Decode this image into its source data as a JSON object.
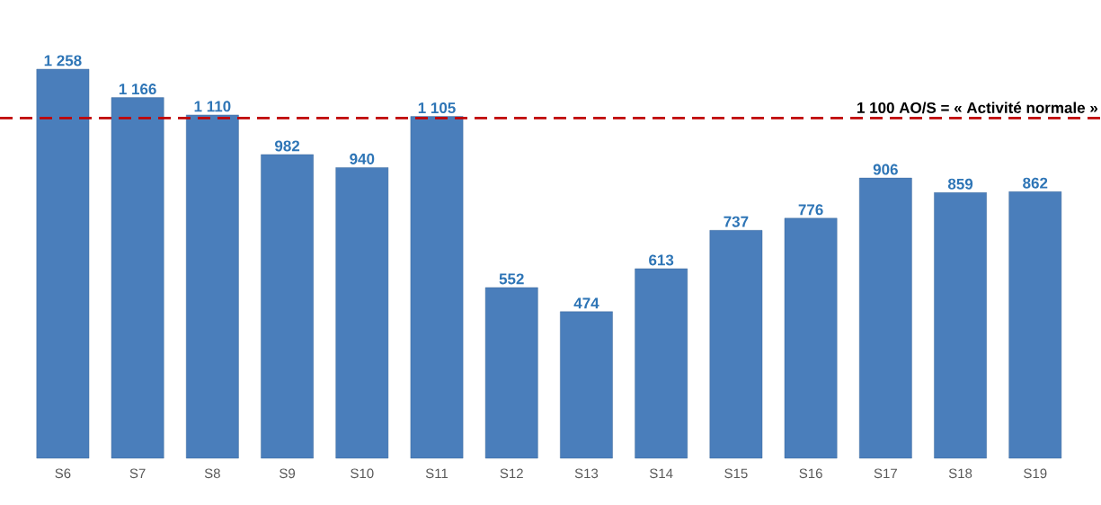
{
  "chart_data": {
    "type": "bar",
    "categories": [
      "S6",
      "S7",
      "S8",
      "S9",
      "S10",
      "S11",
      "S12",
      "S13",
      "S14",
      "S15",
      "S16",
      "S17",
      "S18",
      "S19"
    ],
    "values": [
      1258,
      1166,
      1110,
      982,
      940,
      1105,
      552,
      474,
      613,
      737,
      776,
      906,
      859,
      862
    ],
    "value_labels": [
      "1 258",
      "1 166",
      "1 110",
      "982",
      "940",
      "1 105",
      "552",
      "474",
      "613",
      "737",
      "776",
      "906",
      "859",
      "862"
    ],
    "color": "#4a7ebb",
    "tick_labels": "x",
    "ref_lines": [
      {
        "axis": "y",
        "value": 1100,
        "label": "1 100 AO/S = « Activité normale »",
        "color": "#c00000",
        "line_style": "dashed"
      }
    ]
  }
}
